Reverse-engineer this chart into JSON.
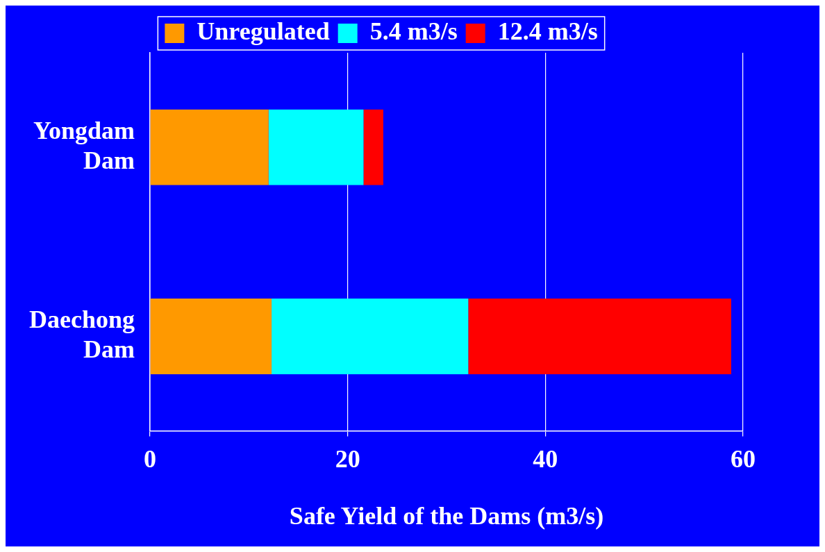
{
  "chart_data": {
    "type": "bar",
    "orientation": "horizontal",
    "stacked": true,
    "categories": [
      "Yongdam Dam",
      "Daechong Dam"
    ],
    "series": [
      {
        "name": "Unregulated",
        "color": "#ff9900",
        "values": [
          12,
          12.3
        ]
      },
      {
        "name": "5.4 m3/s",
        "color": "#00ffff",
        "values": [
          9.6,
          19.9
        ]
      },
      {
        "name": "12.4 m3/s",
        "color": "#ff0000",
        "values": [
          2,
          26.6
        ]
      }
    ],
    "xlabel": "Safe Yield of the Dams (m3/s)",
    "xlim": [
      0,
      60
    ],
    "xticks": [
      0,
      20,
      40,
      60
    ],
    "grid": "x",
    "legend": "top"
  }
}
